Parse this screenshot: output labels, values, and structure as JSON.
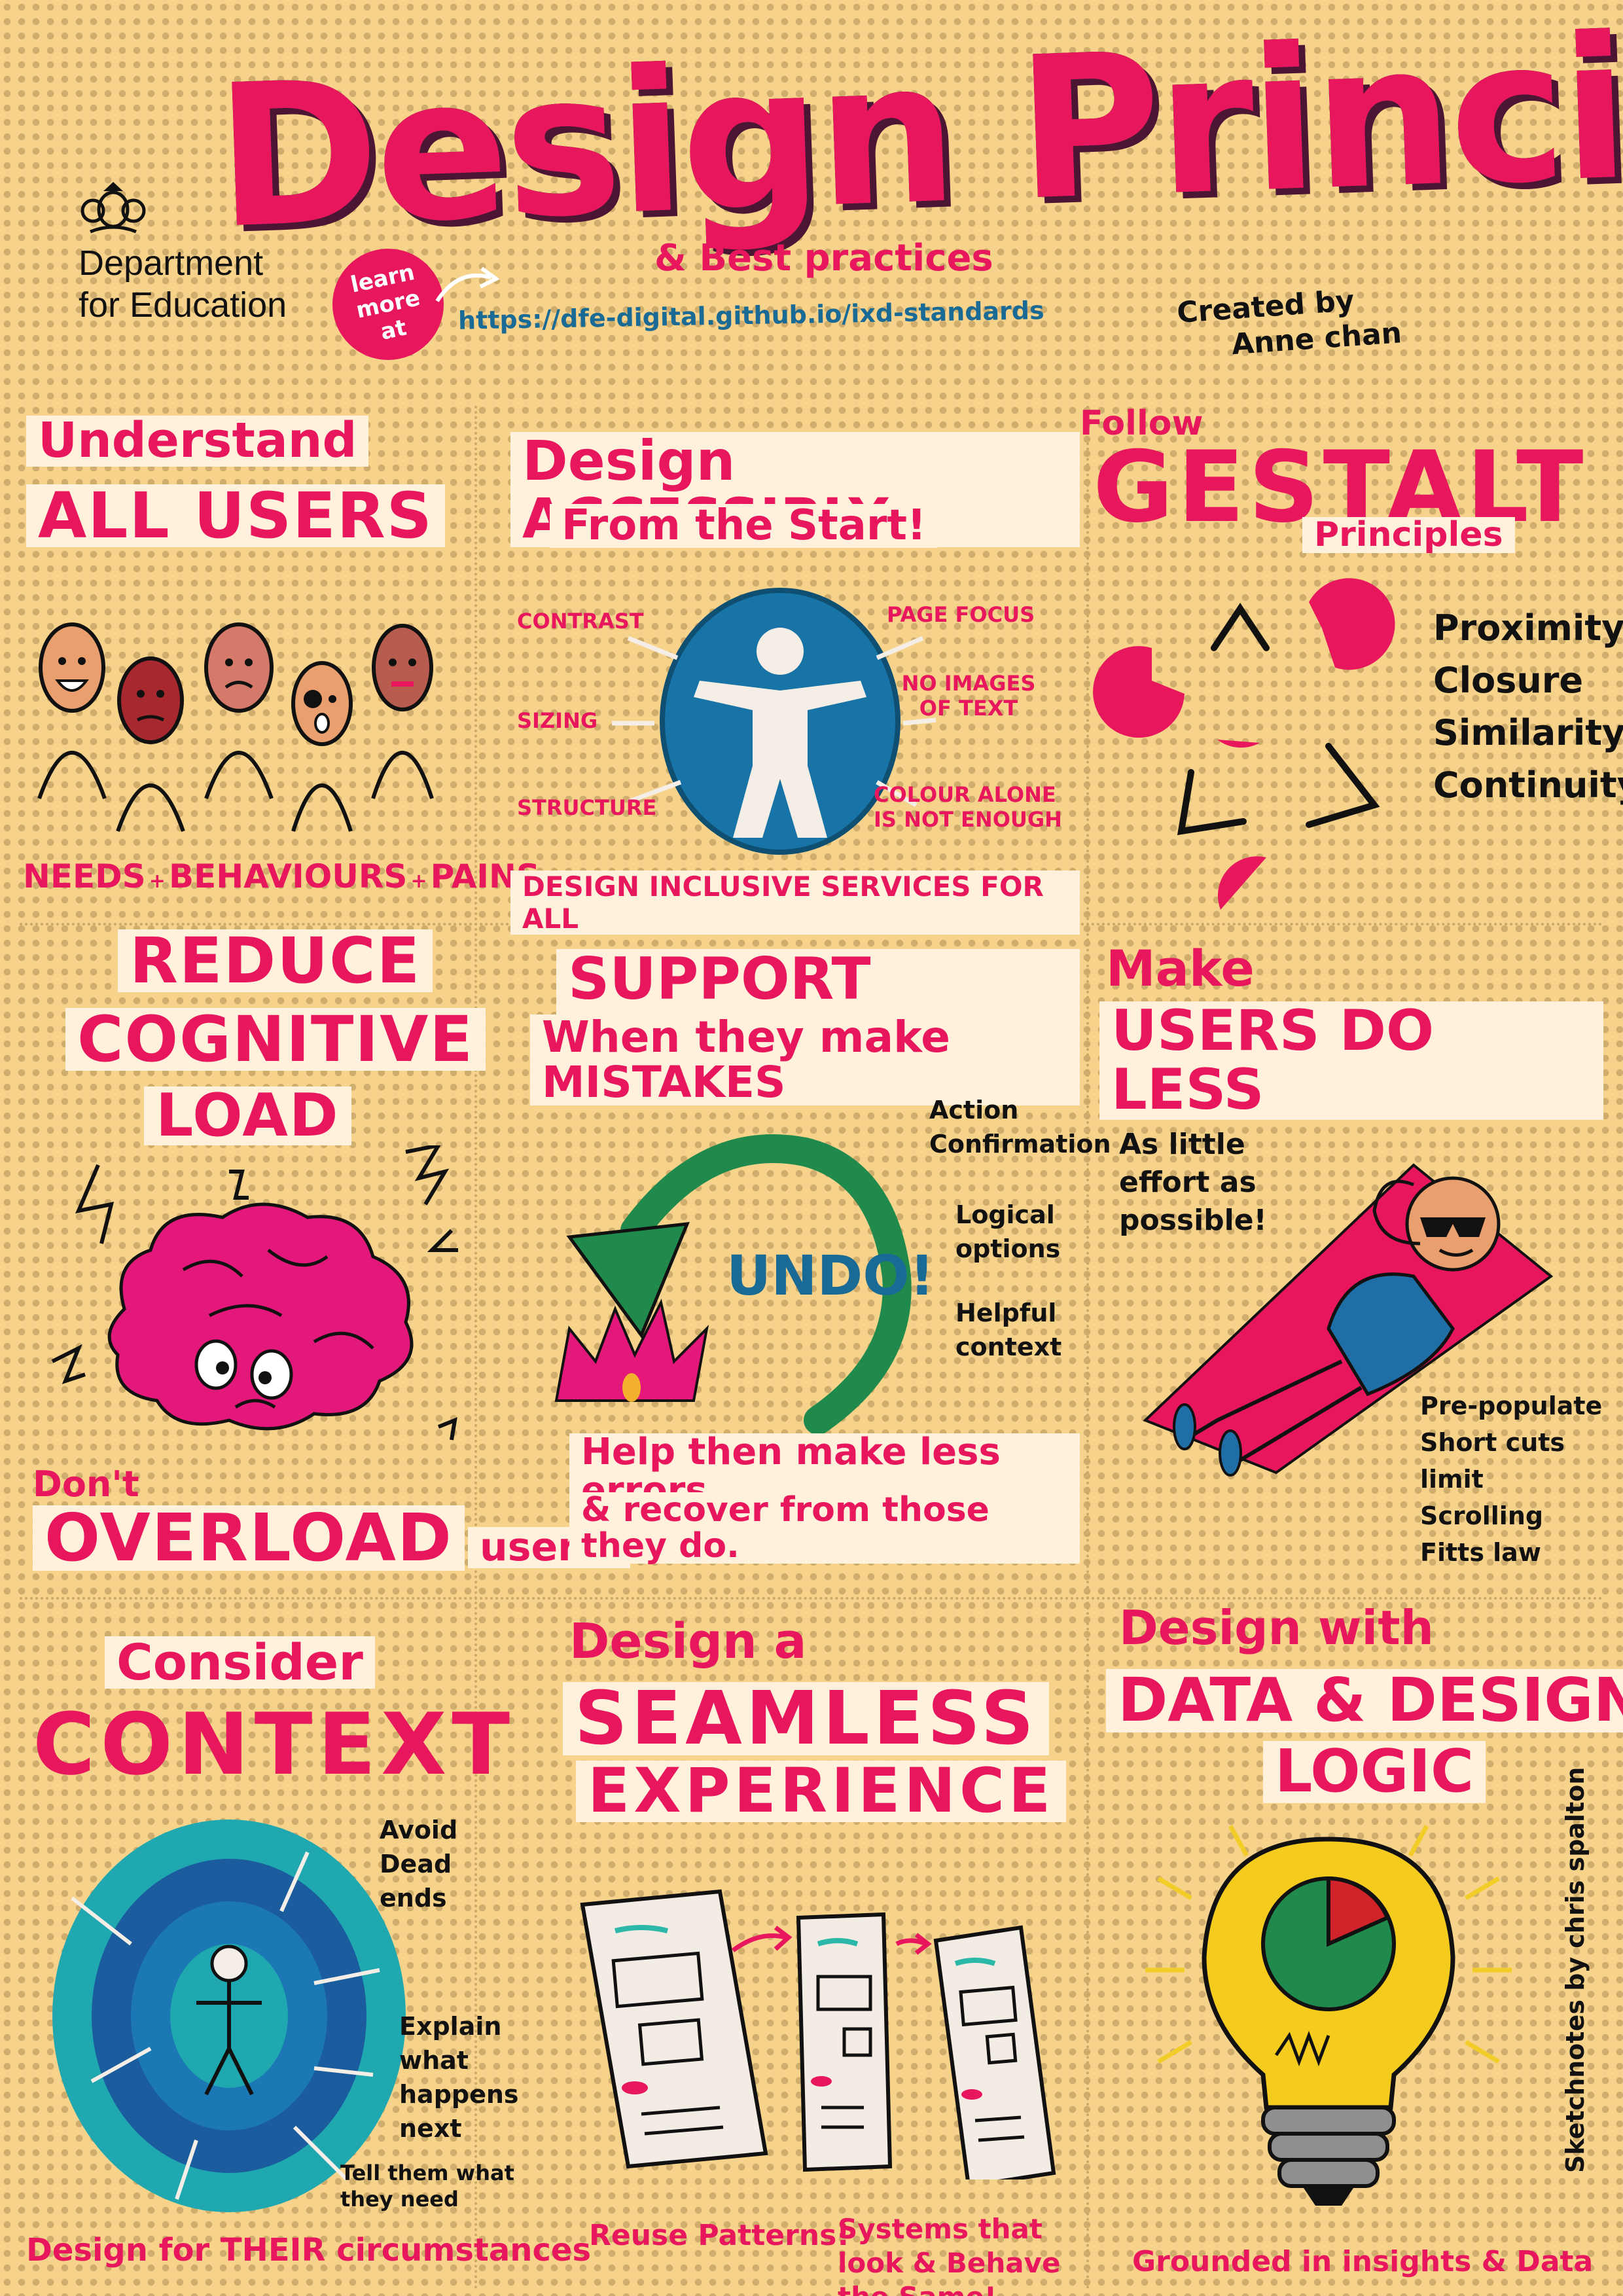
{
  "header": {
    "title": "Design Principles!",
    "subtitle": "& Best practices",
    "department": [
      "Department",
      "for Education"
    ],
    "learn_badge": [
      "learn",
      "more",
      "at"
    ],
    "url": "https://dfe-digital.github.io/ixd-standards",
    "credit": [
      "Created by",
      "Anne chan"
    ]
  },
  "colors": {
    "accent": "#e8175d",
    "background": "#f6d28a",
    "blue": "#1a6a96",
    "green": "#1f8a4c"
  },
  "panels": {
    "understand": {
      "heading_top": "Understand",
      "heading_main": "ALL USERS",
      "footer": [
        "NEEDS",
        "BEHAVIOURS",
        "PAINS"
      ]
    },
    "accessibly": {
      "heading_top": "Design ACCESSIBLY",
      "heading_sub": "From the Start!",
      "labels": {
        "contrast": "CONTRAST",
        "sizing": "SIZING",
        "structure": "STRUCTURE",
        "page_focus": "PAGE FOCUS",
        "no_images": "NO IMAGES OF TEXT",
        "colour_alone": "COLOUR ALONE IS NOT ENOUGH"
      },
      "footer": "DESIGN INCLUSIVE SERVICES FOR ALL"
    },
    "gestalt": {
      "heading_top": "Follow",
      "heading_main": "GESTALT",
      "heading_sub": "Principles",
      "items": [
        "Proximity",
        "Closure",
        "Similarity",
        "Continuity"
      ]
    },
    "cognitive": {
      "heading": [
        "REDUCE",
        "COGNITIVE",
        "LOAD"
      ],
      "footer_top": "Don't",
      "footer_main": "OVERLOAD",
      "footer_end": "users!"
    },
    "mistakes": {
      "heading_main": "SUPPORT USERS",
      "heading_sub": "When they make MISTAKES",
      "undo": "UNDO!",
      "items": [
        "Action Confirmation",
        "Logical options",
        "Helpful context"
      ],
      "footer": [
        "Help then make less errors",
        "& recover from those they do."
      ]
    },
    "do_less": {
      "heading_top": "Make",
      "heading_main": "USERS DO LESS",
      "note": "As little effort as possible!",
      "items": [
        "Pre-populate",
        "Short cuts",
        "limit Scrolling",
        "Fitts law"
      ]
    },
    "context": {
      "heading_top": "Consider",
      "heading_main": "CONTEXT",
      "items": [
        "Avoid Dead ends",
        "Explain what happens next",
        "Tell them what they need"
      ],
      "footer": "Design for THEIR circumstances"
    },
    "seamless": {
      "heading_top": "Design a",
      "heading_main": "SEAMLESS",
      "heading_sub": "EXPERIENCE",
      "footer_left": "Reuse Patterns!",
      "footer_right": "Systems that look & Behave the Same!"
    },
    "data": {
      "heading_top": "Design with",
      "heading_main": "DATA & DESIGN",
      "heading_sub": "LOGIC",
      "footer": "Grounded in insights & Data"
    }
  },
  "sketch_credit": "Sketchnotes by chris spalton"
}
